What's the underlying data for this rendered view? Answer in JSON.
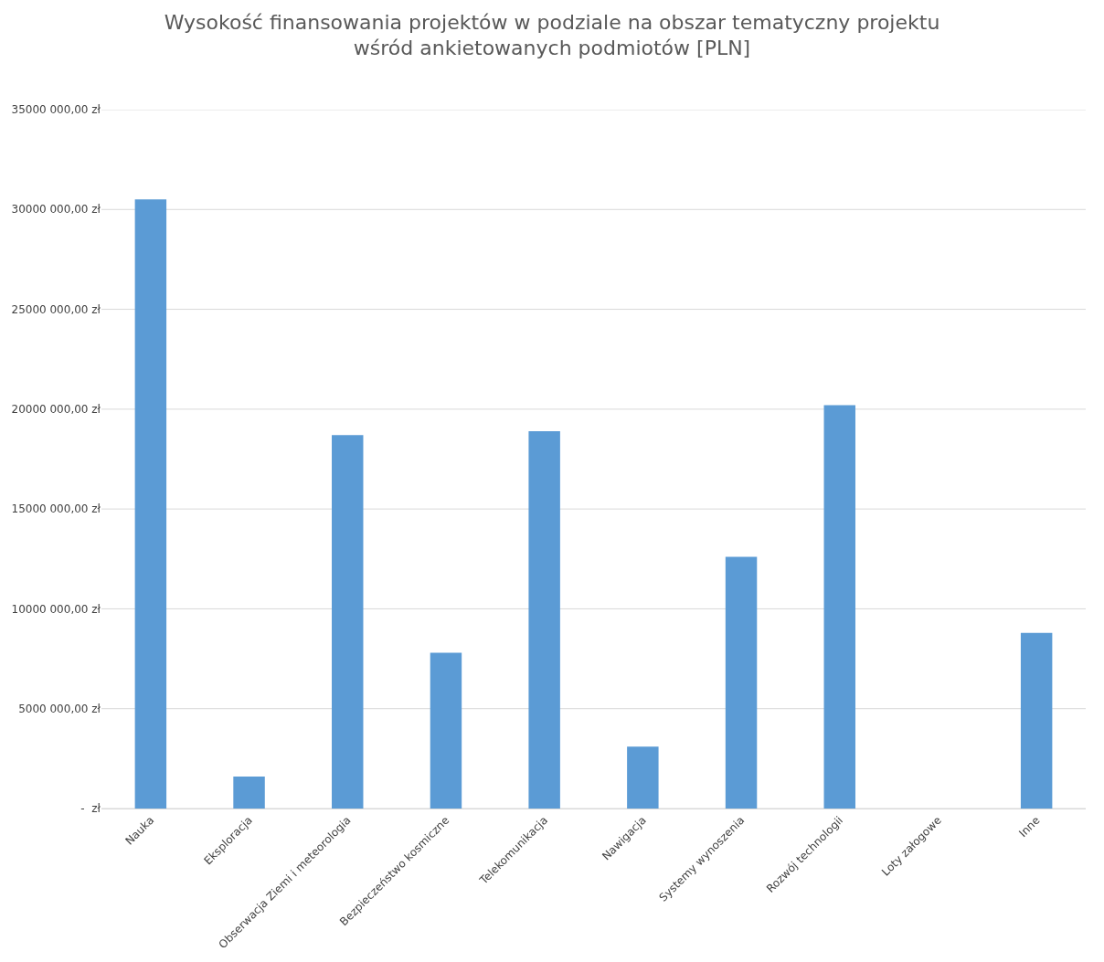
{
  "chart_data": {
    "type": "bar",
    "title": "Wysokość finansowania projektów w podziale na obszar tematyczny projektu\nwśród ankietowanych podmiotów [PLN]",
    "categories": [
      "Nauka",
      "Eksploracja",
      "Obserwacja Ziemi i meteorologia",
      "Bezpieczeństwo kosmiczne",
      "Telekomunikacja",
      "Nawigacja",
      "Systemy wynoszenia",
      "Rozwój technologii",
      "Loty załogowe",
      "Inne"
    ],
    "values": [
      30500000,
      1600000,
      18700000,
      7800000,
      18900000,
      3100000,
      12600000,
      20200000,
      0,
      8800000
    ],
    "color": "#5b9bd5",
    "ylim": [
      0,
      35000000
    ],
    "yticks": [
      {
        "value": 0,
        "label": "-  zł"
      },
      {
        "value": 5000000,
        "label": "5000 000,00 zł"
      },
      {
        "value": 10000000,
        "label": "10000 000,00 zł"
      },
      {
        "value": 15000000,
        "label": "15000 000,00 zł"
      },
      {
        "value": 20000000,
        "label": "20000 000,00 zł"
      },
      {
        "value": 25000000,
        "label": "25000 000,00 zł"
      },
      {
        "value": 30000000,
        "label": "30000 000,00 zł"
      },
      {
        "value": 35000000,
        "label": "35000 000,00 zł"
      }
    ],
    "grid": "y"
  }
}
